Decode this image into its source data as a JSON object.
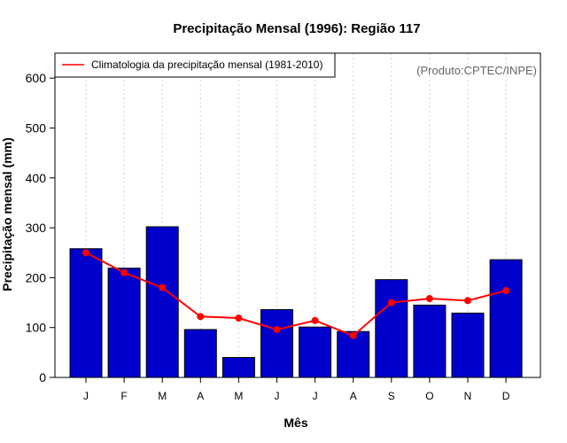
{
  "chart_data": {
    "type": "bar",
    "title": "Precipitação Mensal (1996): Região 117",
    "xlabel": "Mês",
    "ylabel": "Precipitação mensal (mm)",
    "source_note": "(Produto:CPTEC/INPE)",
    "categories": [
      "J",
      "F",
      "M",
      "A",
      "M",
      "J",
      "J",
      "A",
      "S",
      "O",
      "N",
      "D"
    ],
    "ylim": [
      0,
      650
    ],
    "yticks": [
      0,
      100,
      200,
      300,
      400,
      500,
      600
    ],
    "grid": "vertical dotted",
    "legend": {
      "position": "top-left",
      "entries": [
        "Climatologia da precipitação mensal (1981-2010)"
      ]
    },
    "series": [
      {
        "name": "Precipitação mensal 1996",
        "kind": "bar",
        "color": "#0000CC",
        "values": [
          258,
          219,
          302,
          96,
          40,
          136,
          101,
          92,
          196,
          145,
          129,
          236
        ]
      },
      {
        "name": "Climatologia da precipitação mensal (1981-2010)",
        "kind": "line",
        "color": "#FF0000",
        "values": [
          250,
          210,
          180,
          122,
          119,
          96,
          114,
          84,
          150,
          158,
          154,
          174
        ]
      }
    ]
  }
}
